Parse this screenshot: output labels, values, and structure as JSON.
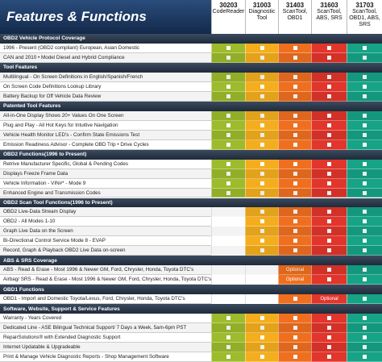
{
  "header": {
    "title": "Features & Functions"
  },
  "columns": [
    {
      "model": "30203",
      "name": "CodeReader",
      "color": "#9dbb2c"
    },
    {
      "model": "31003",
      "name": "Diagnostic Tool",
      "color": "#f4ae1d"
    },
    {
      "model": "31403",
      "name": "ScanTool, OBD1",
      "color": "#ef6f1f"
    },
    {
      "model": "31603",
      "name": "ScanTool, ABS, SRS",
      "color": "#e2352b"
    },
    {
      "model": "31703",
      "name": "ScanTool, OBD1, ABS, SRS",
      "color": "#16a386"
    }
  ],
  "rows": [
    {
      "section": "OBD2 Vehicle Protocol Coverage"
    },
    {
      "label": "1996 - Present (OBD2 compliant) European, Asian Domestic",
      "cells": [
        true,
        true,
        true,
        true,
        true
      ]
    },
    {
      "label": "CAN and 2010 • Model Diesel and Hybrid Compliance",
      "cells": [
        true,
        true,
        true,
        true,
        true
      ]
    },
    {
      "section": "Tool Features"
    },
    {
      "label": "Multilingual - On Screen Definitions in English/Spanish/French",
      "cells": [
        true,
        true,
        true,
        true,
        true
      ]
    },
    {
      "label": "On Screen Code Definitions Lookup Library",
      "cells": [
        true,
        true,
        true,
        true,
        true
      ]
    },
    {
      "label": "Battery Backup for Off Vehicle Data Review",
      "cells": [
        true,
        true,
        true,
        true,
        true
      ]
    },
    {
      "section": "Patented Tool Features"
    },
    {
      "label": "All-in-One Display Shows 20+ Values On One Screen",
      "cells": [
        true,
        true,
        true,
        true,
        true
      ]
    },
    {
      "label": "Plug and Play - All Hot Keys for Intuitive Navigation",
      "cells": [
        true,
        true,
        true,
        true,
        true
      ]
    },
    {
      "label": "Vehicle Health Monitor LED's - Confirm State Emissions Test",
      "cells": [
        true,
        true,
        true,
        true,
        true
      ]
    },
    {
      "label": "Emission Readiness Advisor - Complete OBD Trip • Drive Cycles",
      "cells": [
        true,
        true,
        true,
        true,
        true
      ]
    },
    {
      "section": "OBD2 Functions(1996 to Present)"
    },
    {
      "label": "Retrive Manufacturer Specific, Global & Pending Codes",
      "cells": [
        true,
        true,
        true,
        true,
        true
      ]
    },
    {
      "label": "Displays Freeze Frame Data",
      "cells": [
        true,
        true,
        true,
        true,
        true
      ]
    },
    {
      "label": "Vehicle Information - VIN#* - Mode 9",
      "cells": [
        true,
        true,
        true,
        true,
        true
      ]
    },
    {
      "label": "Enhanced Engine and Transmission Codes",
      "cells": [
        true,
        true,
        true,
        true,
        true
      ]
    },
    {
      "section": "OBD2 Scan Tool Functions(1996 to Present)"
    },
    {
      "label": "OBD2 Live-Data Stream Display",
      "cells": [
        false,
        true,
        true,
        true,
        true
      ]
    },
    {
      "label": "OBD2 - All Modes 1-10",
      "cells": [
        false,
        true,
        true,
        true,
        true
      ]
    },
    {
      "label": "Graph Live Data on the Screen",
      "cells": [
        false,
        true,
        true,
        true,
        true
      ]
    },
    {
      "label": "Bi-Directional Control Service Mode 8 - EVAP",
      "cells": [
        false,
        true,
        true,
        true,
        true
      ]
    },
    {
      "label": "Record, Graph & Playback OBD2 Live Data on-screen",
      "cells": [
        false,
        true,
        true,
        true,
        true
      ]
    },
    {
      "section": "ABS & SRS Coverage"
    },
    {
      "label": "ABS - Read & Erase - Most 1996 & Newer GM, Ford, Chrysler, Honda, Toyota DTC's",
      "cells": [
        false,
        false,
        "Optional",
        true,
        true
      ]
    },
    {
      "label": "Airbag/ SRS - Read & Erase - Most 1996 & Newer GM, Ford, Chrysler, Honda, Toyota DTC's",
      "cells": [
        false,
        false,
        "Optional",
        true,
        true
      ]
    },
    {
      "section": "OBD1 Functions"
    },
    {
      "label": "OBD1 - Import and Domestic Toyota/Lexus, Ford, Chrysler, Honda, Toyota DTC's",
      "cells": [
        false,
        false,
        true,
        "Optional",
        true
      ]
    },
    {
      "section": "Software, Website, Support & Service Features"
    },
    {
      "label": "Warranty - Years Covered",
      "cells": [
        true,
        true,
        true,
        true,
        true
      ]
    },
    {
      "label": "Dedicated Line - ASE Bilingual Technical Support/ 7 Days a Week, 5am-6pm PST",
      "cells": [
        true,
        true,
        true,
        true,
        true
      ]
    },
    {
      "label": "RepairSolutions® with Extended Diagnostic Support",
      "cells": [
        true,
        true,
        true,
        true,
        true
      ]
    },
    {
      "label": "Internet Updatable & Upgradeable",
      "cells": [
        true,
        true,
        true,
        true,
        true
      ]
    },
    {
      "label": "Print & Manage Vehicle Diagnostic Reports - Shop Management Software",
      "cells": [
        true,
        true,
        true,
        true,
        true
      ]
    }
  ]
}
